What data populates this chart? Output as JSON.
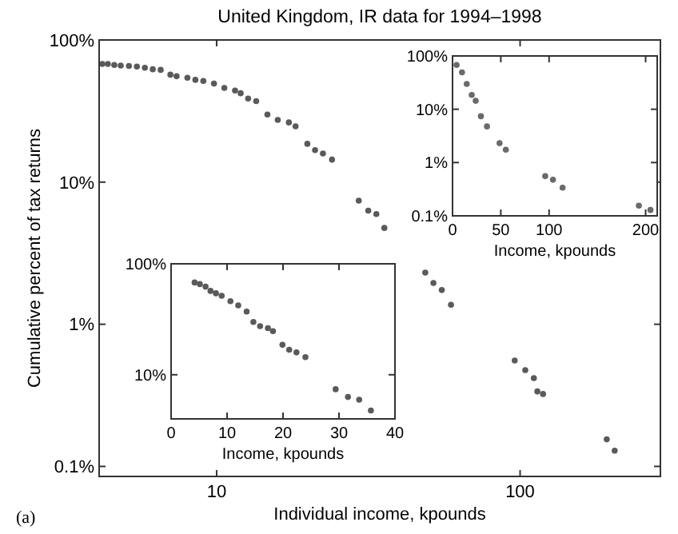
{
  "chart_data": [
    {
      "type": "scatter",
      "title": "United Kingdom, IR data for 1994–1998",
      "xlabel": "Individual income, kpounds",
      "ylabel": "Cumulative percent of tax returns",
      "annotations": [
        "(a)"
      ],
      "log": "xy",
      "marker": "circle",
      "xlim": [
        4.1,
        290
      ],
      "ylim": [
        0.085,
        100
      ],
      "xticks": [
        10,
        100
      ],
      "yticks": [
        {
          "value": 0.1,
          "label": "0.1%"
        },
        {
          "value": 1,
          "label": "1%"
        },
        {
          "value": 10,
          "label": "10%"
        },
        {
          "value": 100,
          "label": "100%"
        }
      ],
      "x": [
        4.2,
        4.38,
        4.6,
        4.83,
        5.14,
        5.46,
        5.8,
        6.16,
        6.54,
        7.04,
        7.38,
        8.01,
        8.51,
        9.04,
        9.8,
        10.6,
        11.5,
        12.0,
        12.7,
        13.5,
        14.7,
        15.9,
        17.3,
        18.2,
        19.9,
        21.1,
        22.4,
        24.0,
        29.4,
        31.6,
        33.6,
        35.7,
        48.7,
        51.8,
        55.2,
        59.2,
        96,
        104,
        111,
        114,
        119,
        193,
        205
      ],
      "series": [
        {
          "color": "#5a5a5a",
          "values": [
            67.8,
            67.8,
            66.7,
            66.1,
            65.6,
            65.0,
            63.8,
            62.2,
            61.6,
            57.0,
            55.6,
            54.2,
            52.4,
            51.5,
            49.3,
            46.0,
            44.1,
            42.2,
            38.7,
            37.1,
            29.9,
            27.4,
            26.3,
            24.7,
            18.6,
            16.8,
            15.9,
            14.4,
            7.4,
            6.3,
            5.96,
            4.76,
            2.31,
            1.95,
            1.74,
            1.37,
            0.556,
            0.476,
            0.418,
            0.337,
            0.323,
            0.155,
            0.129
          ]
        }
      ]
    },
    {
      "type": "scatter",
      "xlabel": "Income, kpounds",
      "log": "y",
      "marker": "circle",
      "xlim": [
        0,
        212
      ],
      "ylim": [
        0.1,
        100
      ],
      "xticks": [
        0,
        50,
        100,
        200
      ],
      "yticks": [
        {
          "value": 0.1,
          "label": "0.1%"
        },
        {
          "value": 1,
          "label": "1%"
        },
        {
          "value": 10,
          "label": "10%"
        },
        {
          "value": 100,
          "label": "100%"
        }
      ],
      "x": [
        4.2,
        9.8,
        14.7,
        19.9,
        24.0,
        29.4,
        35.7,
        48.7,
        55.2,
        96,
        104,
        114,
        193,
        205
      ],
      "series": [
        {
          "color": "#6a6a6a",
          "values": [
            67.8,
            49.3,
            29.9,
            18.6,
            14.4,
            7.4,
            4.76,
            2.31,
            1.74,
            0.556,
            0.476,
            0.337,
            0.155,
            0.129
          ]
        }
      ]
    },
    {
      "type": "scatter",
      "xlabel": "Income, kpounds",
      "log": "y",
      "marker": "circle",
      "xlim": [
        0,
        40
      ],
      "ylim": [
        4,
        100
      ],
      "xticks": [
        0,
        10,
        20,
        30,
        40
      ],
      "yticks": [
        {
          "value": 10,
          "label": "10%"
        },
        {
          "value": 100,
          "label": "100%"
        }
      ],
      "x": [
        4.2,
        5.14,
        6.16,
        7.04,
        8.01,
        9.04,
        10.6,
        12.0,
        13.5,
        14.7,
        15.9,
        17.3,
        18.2,
        19.9,
        21.1,
        22.4,
        24.0,
        29.4,
        31.6,
        33.6,
        35.7
      ],
      "series": [
        {
          "color": "#5a5a5a",
          "values": [
            67.8,
            65.6,
            62.2,
            57.0,
            54.2,
            51.5,
            46.0,
            42.2,
            37.1,
            29.9,
            27.4,
            26.3,
            24.7,
            18.6,
            16.8,
            15.9,
            14.4,
            7.4,
            6.3,
            5.96,
            4.76
          ]
        }
      ]
    }
  ]
}
